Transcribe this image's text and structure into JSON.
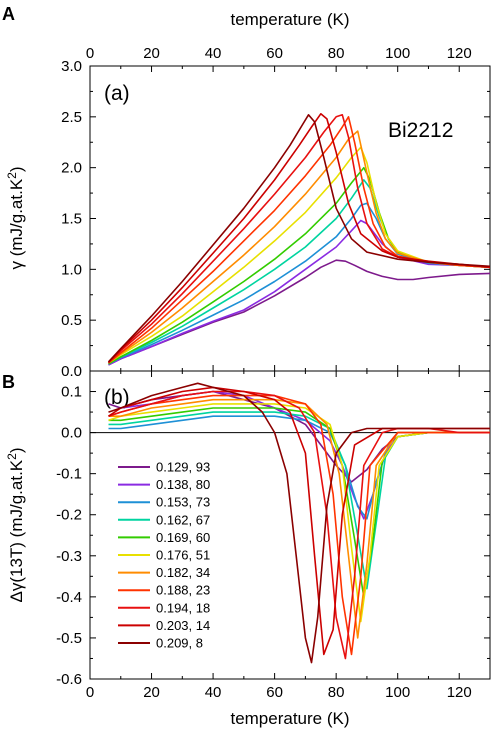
{
  "figure": {
    "panel_letter_top": "A",
    "panel_letter_bottom": "B"
  },
  "chart_data": [
    {
      "type": "line",
      "panel_label": "(a)",
      "annotation": "Bi2212",
      "xlabel": "temperature  (K)",
      "ylabel_prefix": "γ  (mJ/g.at.K",
      "ylabel_sup": "2",
      "ylabel_suffix": ")",
      "xlim": [
        0,
        130
      ],
      "ylim": [
        0,
        3.0
      ],
      "xticks": [
        0,
        20,
        40,
        60,
        80,
        100,
        120
      ],
      "yticks": [
        "0.0",
        "0.5",
        "1.0",
        "1.5",
        "2.0",
        "2.5",
        "3.0"
      ],
      "xtick_position": "top",
      "grid": false,
      "series": [
        {
          "name": "0.129, 93",
          "color": "#7d1a8c",
          "x": [
            6,
            10,
            20,
            30,
            40,
            50,
            60,
            70,
            75,
            80,
            83,
            86,
            90,
            95,
            100,
            105,
            110,
            120,
            130
          ],
          "y": [
            0.06,
            0.12,
            0.24,
            0.36,
            0.48,
            0.58,
            0.74,
            0.92,
            1.02,
            1.09,
            1.08,
            1.04,
            0.98,
            0.93,
            0.9,
            0.9,
            0.92,
            0.95,
            0.96
          ]
        },
        {
          "name": "0.138, 80",
          "color": "#8a2be2",
          "x": [
            6,
            10,
            20,
            30,
            40,
            50,
            60,
            70,
            80,
            85,
            88,
            90,
            95,
            100,
            110,
            120,
            130
          ],
          "y": [
            0.06,
            0.12,
            0.24,
            0.37,
            0.49,
            0.6,
            0.78,
            1.0,
            1.22,
            1.38,
            1.48,
            1.45,
            1.25,
            1.12,
            1.05,
            1.04,
            1.02
          ]
        },
        {
          "name": "0.153, 73",
          "color": "#1e90d6",
          "x": [
            6,
            10,
            20,
            30,
            40,
            50,
            60,
            70,
            80,
            85,
            88,
            90,
            93,
            96,
            100,
            110,
            120,
            130
          ],
          "y": [
            0.07,
            0.13,
            0.26,
            0.4,
            0.55,
            0.7,
            0.88,
            1.08,
            1.32,
            1.5,
            1.63,
            1.65,
            1.5,
            1.3,
            1.15,
            1.06,
            1.04,
            1.02
          ]
        },
        {
          "name": "0.162, 67",
          "color": "#00d4a0",
          "x": [
            6,
            10,
            20,
            30,
            40,
            50,
            60,
            70,
            80,
            85,
            89,
            91,
            94,
            97,
            100,
            110,
            120,
            130
          ],
          "y": [
            0.07,
            0.14,
            0.28,
            0.44,
            0.62,
            0.8,
            1.0,
            1.22,
            1.5,
            1.7,
            1.88,
            1.8,
            1.52,
            1.3,
            1.17,
            1.07,
            1.04,
            1.02
          ]
        },
        {
          "name": "0.169, 60",
          "color": "#33cc00",
          "x": [
            6,
            10,
            20,
            30,
            40,
            50,
            60,
            70,
            80,
            85,
            89,
            91,
            94,
            97,
            100,
            110,
            120,
            130
          ],
          "y": [
            0.07,
            0.14,
            0.3,
            0.48,
            0.68,
            0.88,
            1.1,
            1.35,
            1.65,
            1.85,
            2.0,
            1.88,
            1.56,
            1.3,
            1.17,
            1.07,
            1.04,
            1.02
          ]
        },
        {
          "name": "0.176, 51",
          "color": "#e8e000",
          "x": [
            6,
            10,
            20,
            30,
            40,
            50,
            60,
            70,
            80,
            85,
            88,
            90,
            93,
            96,
            100,
            110,
            120,
            130
          ],
          "y": [
            0.08,
            0.16,
            0.34,
            0.54,
            0.78,
            1.02,
            1.28,
            1.56,
            1.9,
            2.1,
            2.2,
            2.05,
            1.65,
            1.35,
            1.18,
            1.07,
            1.04,
            1.02
          ]
        },
        {
          "name": "0.182, 34",
          "color": "#ff8c00",
          "x": [
            6,
            10,
            20,
            30,
            40,
            50,
            60,
            70,
            80,
            84,
            87,
            90,
            93,
            96,
            100,
            110,
            120,
            130
          ],
          "y": [
            0.08,
            0.17,
            0.38,
            0.62,
            0.88,
            1.14,
            1.42,
            1.74,
            2.1,
            2.28,
            2.36,
            1.95,
            1.55,
            1.3,
            1.16,
            1.07,
            1.04,
            1.02
          ]
        },
        {
          "name": "0.188, 23",
          "color": "#ff3300",
          "x": [
            6,
            10,
            20,
            30,
            40,
            50,
            60,
            70,
            78,
            82,
            84,
            86,
            89,
            92,
            96,
            100,
            110,
            120,
            130
          ],
          "y": [
            0.08,
            0.18,
            0.42,
            0.7,
            0.98,
            1.28,
            1.58,
            1.92,
            2.22,
            2.4,
            2.5,
            2.25,
            1.8,
            1.45,
            1.22,
            1.13,
            1.07,
            1.04,
            1.02
          ]
        },
        {
          "name": "0.194, 18",
          "color": "#e81010",
          "x": [
            6,
            10,
            20,
            30,
            40,
            50,
            60,
            70,
            76,
            80,
            82,
            84,
            87,
            90,
            95,
            100,
            110,
            120,
            130
          ],
          "y": [
            0.08,
            0.2,
            0.46,
            0.76,
            1.08,
            1.4,
            1.74,
            2.1,
            2.35,
            2.5,
            2.52,
            2.3,
            1.8,
            1.45,
            1.2,
            1.12,
            1.07,
            1.05,
            1.02
          ]
        },
        {
          "name": "0.203, 14",
          "color": "#cc0000",
          "x": [
            6,
            10,
            20,
            30,
            40,
            50,
            60,
            68,
            72,
            75,
            77,
            80,
            84,
            88,
            95,
            100,
            110,
            120,
            130
          ],
          "y": [
            0.09,
            0.21,
            0.5,
            0.82,
            1.16,
            1.5,
            1.88,
            2.22,
            2.4,
            2.53,
            2.48,
            2.15,
            1.65,
            1.35,
            1.18,
            1.12,
            1.08,
            1.05,
            1.02
          ]
        },
        {
          "name": "0.209, 8",
          "color": "#8b0000",
          "x": [
            6,
            10,
            20,
            30,
            40,
            50,
            60,
            65,
            69,
            71,
            73,
            76,
            80,
            85,
            90,
            100,
            110,
            120,
            130
          ],
          "y": [
            0.09,
            0.22,
            0.54,
            0.88,
            1.24,
            1.6,
            2.0,
            2.22,
            2.42,
            2.52,
            2.45,
            2.1,
            1.6,
            1.3,
            1.17,
            1.1,
            1.07,
            1.05,
            1.03
          ]
        }
      ]
    },
    {
      "type": "line",
      "panel_label": "(b)",
      "xlabel": "temperature  (K)",
      "ylabel_prefix": "Δγ(13T)  (mJ/g.at.K",
      "ylabel_sup": "2",
      "ylabel_suffix": ")",
      "xlim": [
        0,
        130
      ],
      "ylim": [
        -0.6,
        0.15
      ],
      "xticks": [
        0,
        20,
        40,
        60,
        80,
        100,
        120
      ],
      "yticks": [
        "-0.6",
        "-0.5",
        "-0.4",
        "-0.3",
        "-0.2",
        "-0.1",
        "0.0",
        "0.1"
      ],
      "xtick_position": "bottom",
      "zero_line": true,
      "grid": false,
      "legend_position": "lower-left",
      "series": [
        {
          "name": "0.129, 93",
          "color": "#7d1a8c",
          "x": [
            6,
            10,
            20,
            30,
            40,
            50,
            60,
            70,
            75,
            80,
            85,
            90,
            95,
            100,
            110,
            120,
            130
          ],
          "y": [
            0.07,
            0.06,
            0.08,
            0.09,
            0.1,
            0.08,
            0.06,
            0.02,
            -0.03,
            -0.08,
            -0.12,
            -0.09,
            -0.04,
            -0.01,
            0.0,
            0.0,
            0.0
          ]
        },
        {
          "name": "0.138, 80",
          "color": "#8a2be2",
          "x": [
            10,
            20,
            30,
            40,
            50,
            60,
            70,
            78,
            82,
            86,
            89,
            92,
            96,
            100,
            110,
            120,
            130
          ],
          "y": [
            0.06,
            0.07,
            0.09,
            0.1,
            0.09,
            0.06,
            0.03,
            -0.02,
            -0.08,
            -0.16,
            -0.21,
            -0.15,
            -0.05,
            -0.01,
            0.0,
            0.0,
            0.0
          ]
        },
        {
          "name": "0.153, 73",
          "color": "#1e90d6",
          "x": [
            6,
            10,
            20,
            30,
            40,
            50,
            60,
            70,
            78,
            83,
            87,
            90,
            93,
            97,
            100,
            110,
            120,
            130
          ],
          "y": [
            0.01,
            0.01,
            0.02,
            0.03,
            0.04,
            0.04,
            0.04,
            0.03,
            0.0,
            -0.08,
            -0.18,
            -0.21,
            -0.12,
            -0.03,
            0.0,
            0.0,
            0.0,
            0.0
          ]
        },
        {
          "name": "0.162, 67",
          "color": "#00d4a0",
          "x": [
            6,
            10,
            20,
            30,
            40,
            50,
            60,
            70,
            78,
            83,
            87,
            90,
            93,
            96,
            100,
            110,
            120,
            130
          ],
          "y": [
            0.02,
            0.02,
            0.03,
            0.04,
            0.05,
            0.05,
            0.05,
            0.04,
            0.01,
            -0.08,
            -0.25,
            -0.38,
            -0.22,
            -0.06,
            -0.01,
            0.0,
            0.0,
            0.0
          ]
        },
        {
          "name": "0.169, 60",
          "color": "#33cc00",
          "x": [
            6,
            10,
            20,
            30,
            40,
            50,
            60,
            70,
            78,
            82,
            86,
            89,
            92,
            95,
            100,
            110,
            120,
            130
          ],
          "y": [
            0.03,
            0.03,
            0.04,
            0.05,
            0.06,
            0.06,
            0.06,
            0.05,
            0.01,
            -0.08,
            -0.26,
            -0.4,
            -0.26,
            -0.07,
            -0.01,
            0.0,
            0.0,
            0.0
          ]
        },
        {
          "name": "0.176, 51",
          "color": "#e8e000",
          "x": [
            6,
            10,
            20,
            30,
            40,
            50,
            60,
            70,
            78,
            82,
            85,
            88,
            91,
            94,
            100,
            110,
            120,
            130
          ],
          "y": [
            0.03,
            0.04,
            0.05,
            0.06,
            0.07,
            0.07,
            0.07,
            0.06,
            0.02,
            -0.08,
            -0.28,
            -0.46,
            -0.3,
            -0.08,
            -0.01,
            0.0,
            0.0,
            0.0
          ]
        },
        {
          "name": "0.182, 34",
          "color": "#ff8c00",
          "x": [
            6,
            10,
            20,
            30,
            40,
            50,
            60,
            70,
            77,
            81,
            84,
            87,
            90,
            93,
            100,
            110,
            120,
            130
          ],
          "y": [
            0.04,
            0.04,
            0.06,
            0.07,
            0.08,
            0.08,
            0.08,
            0.07,
            0.02,
            -0.1,
            -0.3,
            -0.5,
            -0.32,
            -0.08,
            0.0,
            0.0,
            0.0,
            0.0
          ]
        },
        {
          "name": "0.188, 23",
          "color": "#ff3300",
          "x": [
            6,
            10,
            20,
            30,
            40,
            50,
            60,
            70,
            75,
            79,
            82,
            85,
            88,
            91,
            100,
            110,
            120,
            130
          ],
          "y": [
            0.04,
            0.05,
            0.07,
            0.08,
            0.09,
            0.09,
            0.09,
            0.07,
            0.02,
            -0.15,
            -0.4,
            -0.54,
            -0.35,
            -0.08,
            0.0,
            0.0,
            0.0,
            0.0
          ]
        },
        {
          "name": "0.194, 18",
          "color": "#e81010",
          "x": [
            6,
            10,
            20,
            30,
            40,
            50,
            60,
            68,
            73,
            77,
            80,
            83,
            86,
            89,
            95,
            100,
            110,
            120,
            130
          ],
          "y": [
            0.04,
            0.05,
            0.07,
            0.09,
            0.1,
            0.1,
            0.09,
            0.06,
            0.0,
            -0.2,
            -0.45,
            -0.55,
            -0.35,
            -0.08,
            0.0,
            0.01,
            0.01,
            0.0,
            0.0
          ]
        },
        {
          "name": "0.203, 14",
          "color": "#cc0000",
          "x": [
            6,
            10,
            20,
            30,
            40,
            50,
            60,
            65,
            70,
            73,
            76,
            79,
            82,
            86,
            95,
            100,
            110,
            120,
            130
          ],
          "y": [
            0.04,
            0.06,
            0.08,
            0.1,
            0.11,
            0.1,
            0.08,
            0.05,
            -0.05,
            -0.3,
            -0.54,
            -0.48,
            -0.2,
            -0.03,
            0.01,
            0.01,
            0.01,
            0.01,
            0.01
          ]
        },
        {
          "name": "0.209, 8",
          "color": "#8b0000",
          "x": [
            6,
            10,
            20,
            30,
            35,
            40,
            50,
            56,
            60,
            64,
            67,
            70,
            72,
            74,
            77,
            80,
            85,
            90,
            100,
            110,
            120,
            130
          ],
          "y": [
            0.05,
            0.06,
            0.09,
            0.11,
            0.12,
            0.11,
            0.09,
            0.05,
            0.0,
            -0.1,
            -0.3,
            -0.5,
            -0.56,
            -0.45,
            -0.18,
            -0.05,
            0.0,
            0.01,
            0.01,
            0.01,
            0.01,
            0.01
          ]
        }
      ]
    }
  ]
}
